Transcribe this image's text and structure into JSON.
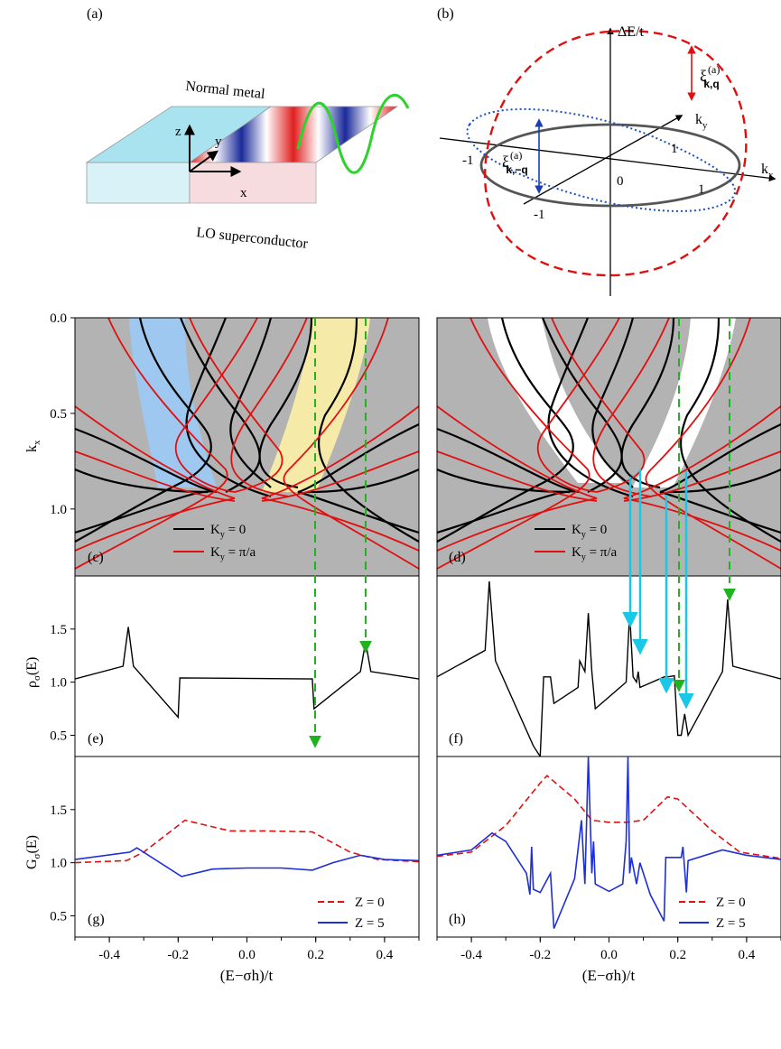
{
  "panel_a": {
    "label": "(a)",
    "normal_metal": "Normal metal",
    "lo_superconductor": "LO superconductor",
    "axis_z": "z",
    "axis_y": "y",
    "axis_x": "x"
  },
  "panel_b": {
    "label": "(b)",
    "y_axis": "ΔE/t",
    "x_axis": "k",
    "x_axis_sub": "x",
    "ky": "k",
    "ky_sub": "y",
    "xi_plus": "ξ",
    "xi_plus_sup": "(a)",
    "xi_plus_sub": "k,q",
    "xi_minus": "ξ",
    "xi_minus_sup": "(a)",
    "xi_minus_sub": "k,−q",
    "ticks": [
      "-1",
      "0",
      "1",
      "1",
      "-1"
    ]
  },
  "panel_labels": {
    "c": "(c)",
    "d": "(d)",
    "e": "(e)",
    "f": "(f)",
    "g": "(g)",
    "h": "(h)"
  },
  "axes": {
    "kx_label": "k",
    "kx_sub": "x",
    "rho_label": "ρ",
    "rho_sub": "σ",
    "rho_arg": "(E)",
    "G_label": "G",
    "G_sub": "σ",
    "G_arg": "(E)",
    "xlabel": "(E−σh)/t"
  },
  "legend_cd": {
    "k0": "K",
    "k0_sub": "y",
    "k0_rest": " = 0",
    "kpi": "K",
    "kpi_sub": "y",
    "kpi_rest": " = π/a"
  },
  "legend_gh": {
    "z0": "Z = 0",
    "z5": "Z = 5"
  },
  "colors": {
    "gray": "#b3b3b3",
    "red": "#e01010",
    "blue": "#1e2fd8",
    "green": "#1fb31f",
    "cyan": "#19c8e6",
    "lightblue": "#9ec8ef",
    "lightyellow": "#f6eaa8"
  },
  "chart_data": [
    {
      "type": "line",
      "panel": "(c)",
      "ylabel": "k_x",
      "ylim": [
        1.35,
        0.0
      ],
      "y_ticks": [
        "0.0",
        "0.5",
        "1.0"
      ],
      "xlim": [
        -0.5,
        0.5
      ],
      "series": [
        {
          "name": "K_y = 0"
        },
        {
          "name": "K_y = π/a"
        }
      ]
    },
    {
      "type": "line",
      "panel": "(d)",
      "ylim": [
        1.35,
        0.0
      ],
      "xlim": [
        -0.5,
        0.5
      ],
      "series": [
        {
          "name": "K_y = 0"
        },
        {
          "name": "K_y = π/a"
        }
      ]
    },
    {
      "type": "line",
      "panel": "(e)",
      "ylabel": "ρ_σ(E)",
      "ylim": [
        0.3,
        2.0
      ],
      "y_ticks": [
        "0.5",
        "1.0",
        "1.5"
      ],
      "x": [
        -0.5,
        -0.36,
        -0.345,
        -0.33,
        -0.2,
        -0.195,
        0.19,
        0.195,
        0.33,
        0.345,
        0.36,
        0.5
      ],
      "values": [
        1.03,
        1.15,
        1.52,
        1.15,
        0.67,
        1.04,
        1.03,
        0.75,
        1.1,
        1.38,
        1.1,
        1.03
      ]
    },
    {
      "type": "line",
      "panel": "(f)",
      "ylim": [
        0.3,
        2.0
      ],
      "x": [
        -0.5,
        -0.36,
        -0.348,
        -0.33,
        -0.22,
        -0.2,
        -0.19,
        -0.17,
        -0.16,
        -0.09,
        -0.085,
        -0.07,
        -0.06,
        -0.05,
        -0.04,
        0.05,
        0.06,
        0.07,
        0.08,
        0.085,
        0.09,
        0.16,
        0.17,
        0.19,
        0.2,
        0.21,
        0.22,
        0.23,
        0.33,
        0.345,
        0.36,
        0.5
      ],
      "values": [
        1.05,
        1.3,
        1.95,
        1.2,
        0.4,
        0.3,
        1.05,
        1.05,
        0.8,
        0.95,
        1.2,
        1.1,
        1.65,
        1.1,
        0.75,
        1.0,
        1.65,
        1.05,
        1.0,
        1.1,
        0.95,
        1.05,
        1.05,
        1.06,
        0.5,
        0.5,
        0.7,
        0.5,
        1.1,
        1.78,
        1.15,
        1.03
      ]
    },
    {
      "type": "line",
      "panel": "(g)",
      "ylabel": "G_σ(E)",
      "ylim": [
        0.3,
        2.0
      ],
      "y_ticks": [
        "0.5",
        "1.0",
        "1.5"
      ],
      "series": [
        {
          "name": "Z = 0",
          "x": [
            -0.5,
            -0.35,
            -0.3,
            -0.18,
            -0.05,
            0.05,
            0.19,
            0.3,
            0.38,
            0.5
          ],
          "values": [
            1.0,
            1.02,
            1.1,
            1.4,
            1.3,
            1.3,
            1.29,
            1.1,
            1.03,
            1.01
          ]
        },
        {
          "name": "Z = 5",
          "x": [
            -0.5,
            -0.34,
            -0.32,
            -0.19,
            -0.1,
            0.0,
            0.1,
            0.19,
            0.25,
            0.33,
            0.4,
            0.5
          ],
          "values": [
            1.03,
            1.1,
            1.14,
            0.87,
            0.94,
            0.95,
            0.95,
            0.93,
            1.0,
            1.07,
            1.03,
            1.02
          ]
        }
      ]
    },
    {
      "type": "line",
      "panel": "(h)",
      "ylim": [
        0.3,
        2.0
      ],
      "series": [
        {
          "name": "Z = 0",
          "x": [
            -0.5,
            -0.4,
            -0.3,
            -0.2,
            -0.18,
            -0.1,
            -0.05,
            0.0,
            0.05,
            0.1,
            0.17,
            0.2,
            0.3,
            0.38,
            0.5
          ],
          "values": [
            1.06,
            1.1,
            1.35,
            1.75,
            1.82,
            1.6,
            1.4,
            1.38,
            1.38,
            1.4,
            1.62,
            1.6,
            1.3,
            1.1,
            1.04
          ]
        },
        {
          "name": "Z = 5",
          "x": [
            -0.5,
            -0.4,
            -0.34,
            -0.3,
            -0.24,
            -0.23,
            -0.225,
            -0.22,
            -0.2,
            -0.17,
            -0.16,
            -0.1,
            -0.08,
            -0.07,
            -0.06,
            -0.05,
            -0.045,
            -0.04,
            0.0,
            0.04,
            0.05,
            0.055,
            0.06,
            0.065,
            0.08,
            0.09,
            0.12,
            0.16,
            0.165,
            0.21,
            0.215,
            0.225,
            0.23,
            0.33,
            0.4,
            0.5
          ],
          "values": [
            1.07,
            1.12,
            1.28,
            1.2,
            0.9,
            0.7,
            1.15,
            0.75,
            0.72,
            0.9,
            0.38,
            0.85,
            1.4,
            0.8,
            2.0,
            0.9,
            1.2,
            0.8,
            0.73,
            0.8,
            1.2,
            2.0,
            0.9,
            1.05,
            0.8,
            1.0,
            0.7,
            0.45,
            1.05,
            1.05,
            1.15,
            0.72,
            1.02,
            1.12,
            1.07,
            1.03
          ]
        }
      ]
    },
    {
      "type": "line",
      "panel": "shared-x",
      "x_ticks": [
        "-0.4",
        "-0.2",
        "0.0",
        "0.2",
        "0.4"
      ],
      "xlim": [
        -0.5,
        0.5
      ]
    }
  ]
}
